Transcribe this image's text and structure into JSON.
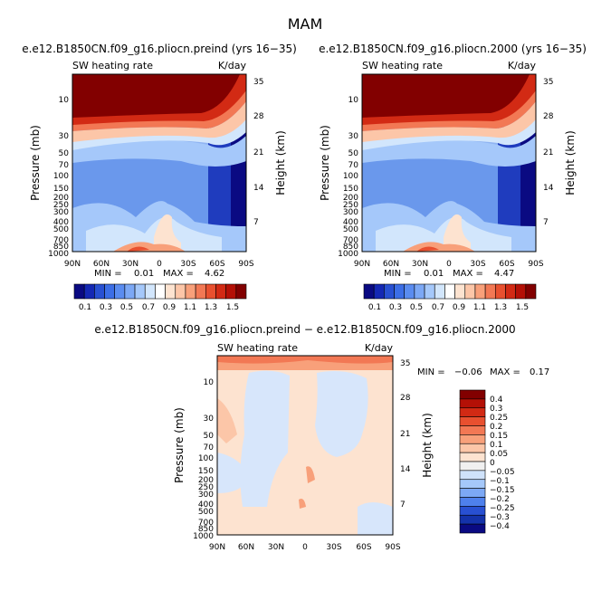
{
  "figure": {
    "title": "MAM",
    "diff_title": "e.e12.B1850CN.f09_g16.pliocn.preind − e.e12.B1850CN.f09_g16.pliocn.2000"
  },
  "axes": {
    "ylabel": "Pressure (mb)",
    "ylabel_right": "Height (km)",
    "pressure_ticks": [
      "10",
      "30",
      "50",
      "70",
      "100",
      "150",
      "200",
      "250",
      "300",
      "400",
      "500",
      "700",
      "850",
      "1000"
    ],
    "height_ticks": [
      "35",
      "28",
      "21",
      "14",
      "7"
    ],
    "lat_ticks": [
      "90N",
      "60N",
      "30N",
      "0",
      "30S",
      "60S",
      "90S"
    ]
  },
  "chart_data": [
    {
      "type": "heatmap",
      "title": "e.e12.B1850CN.f09_g16.pliocn.preind (yrs 16−35)",
      "subtitle_left": "SW heating rate",
      "subtitle_right": "K/day",
      "xlabel": "",
      "ylabel": "Pressure (mb)",
      "ylabel_right": "Height (km)",
      "x_ticks": [
        "90N",
        "60N",
        "30N",
        "0",
        "30S",
        "60S",
        "90S"
      ],
      "y_range_mb": [
        1000,
        5
      ],
      "min_label": "MIN =",
      "min": "0.01",
      "max_label": "MAX =",
      "max": "4.62",
      "colorbar_labels": [
        "0.1",
        "0.3",
        "0.5",
        "0.7",
        "0.9",
        "1.1",
        "1.3",
        "1.5"
      ]
    },
    {
      "type": "heatmap",
      "title": "e.e12.B1850CN.f09_g16.pliocn.2000 (yrs 16−35)",
      "subtitle_left": "SW heating rate",
      "subtitle_right": "K/day",
      "xlabel": "",
      "ylabel": "Pressure (mb)",
      "ylabel_right": "Height (km)",
      "x_ticks": [
        "90N",
        "60N",
        "30N",
        "0",
        "30S",
        "60S",
        "90S"
      ],
      "y_range_mb": [
        1000,
        5
      ],
      "min_label": "MIN =",
      "min": "0.01",
      "max_label": "MAX =",
      "max": "4.47",
      "colorbar_labels": [
        "0.1",
        "0.3",
        "0.5",
        "0.7",
        "0.9",
        "1.1",
        "1.3",
        "1.5"
      ]
    },
    {
      "type": "heatmap",
      "title": "e.e12.B1850CN.f09_g16.pliocn.preind − e.e12.B1850CN.f09_g16.pliocn.2000",
      "subtitle_left": "SW heating rate",
      "subtitle_right": "K/day",
      "xlabel": "",
      "ylabel": "Pressure (mb)",
      "ylabel_right": "Height (km)",
      "x_ticks": [
        "90N",
        "60N",
        "30N",
        "0",
        "30S",
        "60S",
        "90S"
      ],
      "y_range_mb": [
        1000,
        5
      ],
      "min_label": "MIN =",
      "min": "−0.06",
      "max_label": "MAX =",
      "max": "0.17",
      "colorbar_labels": [
        "0.4",
        "0.3",
        "0.25",
        "0.2",
        "0.15",
        "0.1",
        "0.05",
        "0",
        "−0.05",
        "−0.1",
        "−0.15",
        "−0.2",
        "−0.25",
        "−0.3",
        "−0.4"
      ]
    }
  ],
  "colors": {
    "abs_scale": [
      "#0a0a82",
      "#1428b4",
      "#2850d2",
      "#3c6ee6",
      "#5a8cf0",
      "#7ca8f5",
      "#a5c8fa",
      "#d2e6fc",
      "#ffffff",
      "#fde3d0",
      "#fcc6a8",
      "#f8a07a",
      "#f27854",
      "#e8502f",
      "#d22a14",
      "#b41006",
      "#820000"
    ],
    "diff_scale": [
      "#820000",
      "#b41006",
      "#d22a14",
      "#e8502f",
      "#f27854",
      "#f8a07a",
      "#fcc6a8",
      "#fde3d0",
      "#f0f0f0",
      "#cfe2fa",
      "#a5c8fa",
      "#7ca8f5",
      "#4e80ec",
      "#2850d2",
      "#1432aa",
      "#0a0a82"
    ]
  }
}
